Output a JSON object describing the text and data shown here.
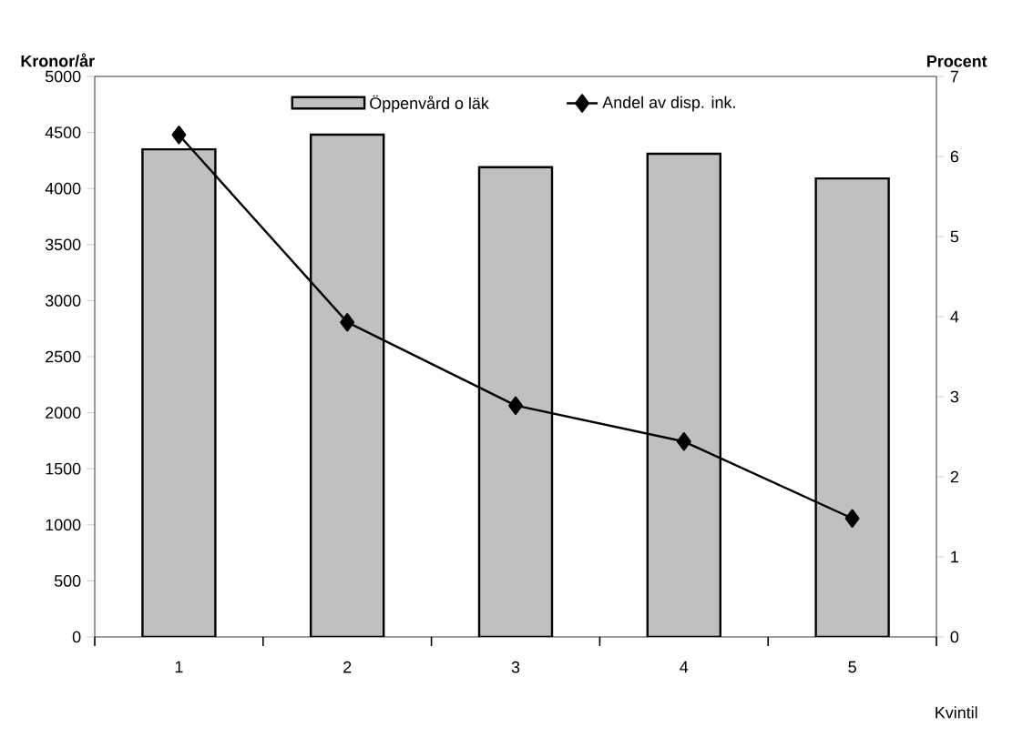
{
  "chart_data": {
    "type": "bar",
    "categories": [
      "1",
      "2",
      "3",
      "4",
      "5"
    ],
    "xlabel": "Kvintil",
    "ylabel": "Kronor/år",
    "y2label": "Procent",
    "series": [
      {
        "name": "Öppenvård o läk",
        "color": "#c0c0c0",
        "values": [
          4350,
          4480,
          4190,
          4310,
          4090
        ]
      },
      {
        "name": "Andel av disp. ink.",
        "type": "line",
        "axis": "y2",
        "color": "#000000",
        "marker": "diamond",
        "values": [
          6.27,
          3.93,
          2.89,
          2.44,
          1.48
        ]
      }
    ],
    "ylim": [
      0,
      5000
    ],
    "yticks": [
      0,
      500,
      1000,
      1500,
      2000,
      2500,
      3000,
      3500,
      4000,
      4500,
      5000
    ],
    "y2lim": [
      0,
      7
    ],
    "y2ticks": [
      0,
      1,
      2,
      3,
      4,
      5,
      6,
      7
    ],
    "grid": false,
    "legend": "top"
  }
}
